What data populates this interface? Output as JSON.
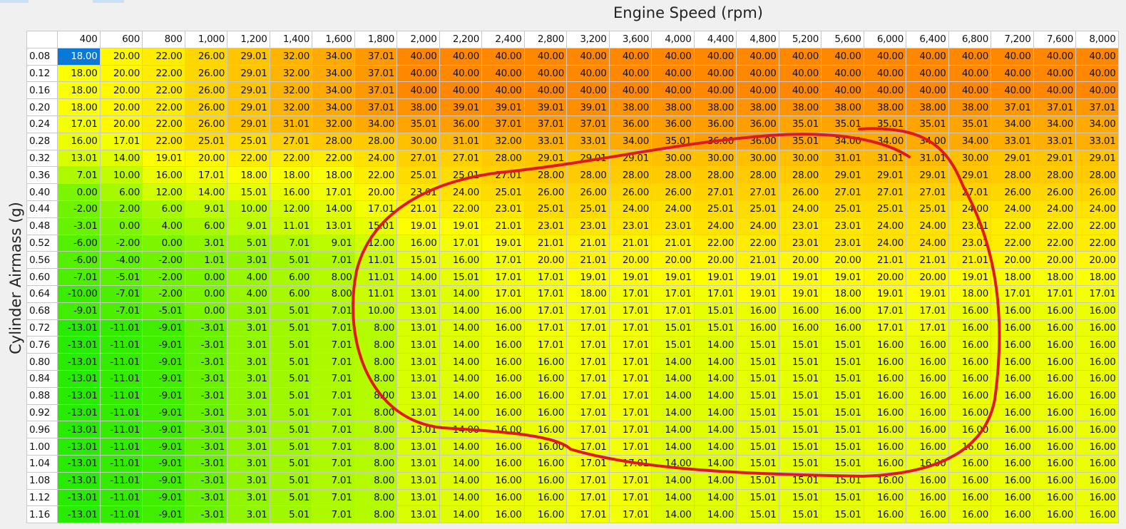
{
  "header": {
    "title": "Engine Speed (rpm)",
    "y_label": "Cylinder Airmass (g)"
  },
  "table": {
    "columns": [
      "400",
      "600",
      "800",
      "1,000",
      "1,200",
      "1,400",
      "1,600",
      "1,800",
      "2,000",
      "2,200",
      "2,400",
      "2,800",
      "3,200",
      "3,600",
      "4,000",
      "4,400",
      "4,800",
      "5,200",
      "5,600",
      "6,000",
      "6,400",
      "6,800",
      "7,200",
      "7,600",
      "8,000"
    ],
    "rows": [
      {
        "label": "0.08",
        "cells": [
          "18.00",
          "20.00",
          "22.00",
          "26.00",
          "29.01",
          "32.00",
          "34.00",
          "37.01",
          "40.00",
          "40.00",
          "40.00",
          "40.00",
          "40.00",
          "40.00",
          "40.00",
          "40.00",
          "40.00",
          "40.00",
          "40.00",
          "40.00",
          "40.00",
          "40.00",
          "40.00",
          "40.00",
          "40.00"
        ]
      },
      {
        "label": "0.12",
        "cells": [
          "18.00",
          "20.00",
          "22.00",
          "26.00",
          "29.01",
          "32.00",
          "34.00",
          "37.01",
          "40.00",
          "40.00",
          "40.00",
          "40.00",
          "40.00",
          "40.00",
          "40.00",
          "40.00",
          "40.00",
          "40.00",
          "40.00",
          "40.00",
          "40.00",
          "40.00",
          "40.00",
          "40.00",
          "40.00"
        ]
      },
      {
        "label": "0.16",
        "cells": [
          "18.00",
          "20.00",
          "22.00",
          "26.00",
          "29.01",
          "32.00",
          "34.00",
          "37.01",
          "40.00",
          "40.00",
          "40.00",
          "40.00",
          "40.00",
          "40.00",
          "40.00",
          "40.00",
          "40.00",
          "40.00",
          "40.00",
          "40.00",
          "40.00",
          "40.00",
          "40.00",
          "40.00",
          "40.00"
        ]
      },
      {
        "label": "0.20",
        "cells": [
          "18.00",
          "20.00",
          "22.00",
          "26.00",
          "29.01",
          "32.00",
          "34.00",
          "37.01",
          "38.00",
          "39.01",
          "39.01",
          "39.01",
          "39.01",
          "38.00",
          "38.00",
          "38.00",
          "38.00",
          "38.00",
          "38.00",
          "38.00",
          "38.00",
          "38.00",
          "37.01",
          "37.01",
          "37.01"
        ]
      },
      {
        "label": "0.24",
        "cells": [
          "17.01",
          "20.00",
          "22.00",
          "26.00",
          "29.01",
          "31.01",
          "32.00",
          "34.00",
          "35.01",
          "36.00",
          "37.01",
          "37.01",
          "37.01",
          "36.00",
          "36.00",
          "36.00",
          "36.00",
          "35.01",
          "35.01",
          "35.01",
          "35.01",
          "35.01",
          "34.00",
          "34.00",
          "34.00"
        ]
      },
      {
        "label": "0.28",
        "cells": [
          "16.00",
          "17.01",
          "22.00",
          "25.01",
          "25.01",
          "27.01",
          "28.00",
          "28.00",
          "30.00",
          "31.01",
          "32.00",
          "33.01",
          "33.01",
          "34.00",
          "35.01",
          "36.00",
          "36.00",
          "35.01",
          "34.00",
          "34.00",
          "34.00",
          "34.00",
          "33.01",
          "33.01",
          "33.01"
        ]
      },
      {
        "label": "0.32",
        "cells": [
          "13.01",
          "14.00",
          "19.01",
          "20.00",
          "22.00",
          "22.00",
          "22.00",
          "24.00",
          "27.01",
          "27.01",
          "28.00",
          "29.01",
          "29.01",
          "29.01",
          "30.00",
          "30.00",
          "30.00",
          "30.00",
          "31.01",
          "31.01",
          "31.01",
          "30.00",
          "29.01",
          "29.01",
          "29.01"
        ]
      },
      {
        "label": "0.36",
        "cells": [
          "7.01",
          "10.00",
          "16.00",
          "17.01",
          "18.00",
          "18.00",
          "18.00",
          "22.00",
          "25.01",
          "25.01",
          "27.01",
          "28.00",
          "28.00",
          "28.00",
          "28.00",
          "28.00",
          "28.00",
          "28.00",
          "29.01",
          "29.01",
          "29.01",
          "29.01",
          "28.00",
          "28.00",
          "28.00"
        ]
      },
      {
        "label": "0.40",
        "cells": [
          "0.00",
          "6.00",
          "12.00",
          "14.00",
          "15.01",
          "16.00",
          "17.01",
          "20.00",
          "23.01",
          "24.00",
          "25.01",
          "26.00",
          "26.00",
          "26.00",
          "26.00",
          "27.01",
          "27.01",
          "26.00",
          "27.01",
          "27.01",
          "27.01",
          "27.01",
          "26.00",
          "26.00",
          "26.00"
        ]
      },
      {
        "label": "0.44",
        "cells": [
          "-2.00",
          "2.00",
          "6.00",
          "9.01",
          "10.00",
          "12.00",
          "14.00",
          "17.01",
          "21.01",
          "22.00",
          "23.01",
          "25.01",
          "25.01",
          "24.00",
          "24.00",
          "25.01",
          "25.01",
          "24.00",
          "25.01",
          "25.01",
          "25.01",
          "24.00",
          "24.00",
          "24.00",
          "24.00"
        ]
      },
      {
        "label": "0.48",
        "cells": [
          "-3.01",
          "0.00",
          "4.00",
          "6.00",
          "9.01",
          "11.01",
          "13.01",
          "15.01",
          "19.01",
          "19.01",
          "21.01",
          "23.01",
          "23.01",
          "23.01",
          "23.01",
          "24.00",
          "24.00",
          "23.01",
          "23.01",
          "24.00",
          "24.00",
          "23.01",
          "22.00",
          "22.00",
          "22.00"
        ]
      },
      {
        "label": "0.52",
        "cells": [
          "-6.00",
          "-2.00",
          "0.00",
          "3.01",
          "5.01",
          "7.01",
          "9.01",
          "12.00",
          "16.00",
          "17.01",
          "19.01",
          "21.01",
          "21.01",
          "21.01",
          "21.01",
          "22.00",
          "22.00",
          "23.01",
          "23.01",
          "24.00",
          "24.00",
          "23.01",
          "22.00",
          "22.00",
          "22.00"
        ]
      },
      {
        "label": "0.56",
        "cells": [
          "-6.00",
          "-4.00",
          "-2.00",
          "1.01",
          "3.01",
          "5.01",
          "7.01",
          "11.01",
          "15.01",
          "16.00",
          "17.01",
          "20.00",
          "21.01",
          "20.00",
          "20.00",
          "20.00",
          "21.01",
          "20.00",
          "20.00",
          "21.01",
          "21.01",
          "21.01",
          "20.00",
          "20.00",
          "20.00"
        ]
      },
      {
        "label": "0.60",
        "cells": [
          "-7.01",
          "-5.01",
          "-2.00",
          "0.00",
          "4.00",
          "6.00",
          "8.00",
          "11.01",
          "14.00",
          "15.01",
          "17.01",
          "17.01",
          "19.01",
          "19.01",
          "19.01",
          "19.01",
          "19.01",
          "19.01",
          "19.01",
          "20.00",
          "20.00",
          "19.01",
          "18.00",
          "18.00",
          "18.00"
        ]
      },
      {
        "label": "0.64",
        "cells": [
          "-10.00",
          "-7.01",
          "-2.00",
          "0.00",
          "4.00",
          "6.00",
          "8.00",
          "11.01",
          "13.01",
          "14.00",
          "17.01",
          "17.01",
          "18.00",
          "17.01",
          "17.01",
          "17.01",
          "19.01",
          "19.01",
          "18.00",
          "19.01",
          "19.01",
          "18.00",
          "17.01",
          "17.01",
          "17.01"
        ]
      },
      {
        "label": "0.68",
        "cells": [
          "-9.01",
          "-7.01",
          "-5.01",
          "0.00",
          "3.01",
          "5.01",
          "7.01",
          "10.00",
          "13.01",
          "14.00",
          "16.00",
          "17.01",
          "17.01",
          "17.01",
          "17.01",
          "15.01",
          "16.00",
          "16.00",
          "16.00",
          "17.01",
          "17.01",
          "16.00",
          "16.00",
          "16.00",
          "16.00"
        ]
      },
      {
        "label": "0.72",
        "cells": [
          "-13.01",
          "-11.01",
          "-9.01",
          "-3.01",
          "3.01",
          "5.01",
          "7.01",
          "8.00",
          "13.01",
          "14.00",
          "16.00",
          "17.01",
          "17.01",
          "17.01",
          "15.01",
          "15.01",
          "16.00",
          "16.00",
          "16.00",
          "17.01",
          "17.01",
          "16.00",
          "16.00",
          "16.00",
          "16.00"
        ]
      },
      {
        "label": "0.76",
        "cells": [
          "-13.01",
          "-11.01",
          "-9.01",
          "-3.01",
          "3.01",
          "5.01",
          "7.01",
          "8.00",
          "13.01",
          "14.00",
          "16.00",
          "17.01",
          "17.01",
          "17.01",
          "15.01",
          "14.00",
          "15.01",
          "15.01",
          "15.01",
          "16.00",
          "16.00",
          "16.00",
          "16.00",
          "16.00",
          "16.00"
        ]
      },
      {
        "label": "0.80",
        "cells": [
          "-13.01",
          "-11.01",
          "-9.01",
          "-3.01",
          "3.01",
          "5.01",
          "7.01",
          "8.00",
          "13.01",
          "14.00",
          "16.00",
          "16.00",
          "17.01",
          "17.01",
          "14.00",
          "14.00",
          "15.01",
          "15.01",
          "15.01",
          "16.00",
          "16.00",
          "16.00",
          "16.00",
          "16.00",
          "16.00"
        ]
      },
      {
        "label": "0.84",
        "cells": [
          "-13.01",
          "-11.01",
          "-9.01",
          "-3.01",
          "3.01",
          "5.01",
          "7.01",
          "8.00",
          "13.01",
          "14.00",
          "16.00",
          "16.00",
          "17.01",
          "17.01",
          "14.00",
          "14.00",
          "15.01",
          "15.01",
          "15.01",
          "16.00",
          "16.00",
          "16.00",
          "16.00",
          "16.00",
          "16.00"
        ]
      },
      {
        "label": "0.88",
        "cells": [
          "-13.01",
          "-11.01",
          "-9.01",
          "-3.01",
          "3.01",
          "5.01",
          "7.01",
          "8.00",
          "13.01",
          "14.00",
          "16.00",
          "16.00",
          "17.01",
          "17.01",
          "14.00",
          "14.00",
          "15.01",
          "15.01",
          "15.01",
          "16.00",
          "16.00",
          "16.00",
          "16.00",
          "16.00",
          "16.00"
        ]
      },
      {
        "label": "0.92",
        "cells": [
          "-13.01",
          "-11.01",
          "-9.01",
          "-3.01",
          "3.01",
          "5.01",
          "7.01",
          "8.00",
          "13.01",
          "14.00",
          "16.00",
          "16.00",
          "17.01",
          "17.01",
          "14.00",
          "14.00",
          "15.01",
          "15.01",
          "15.01",
          "16.00",
          "16.00",
          "16.00",
          "16.00",
          "16.00",
          "16.00"
        ]
      },
      {
        "label": "0.96",
        "cells": [
          "-13.01",
          "-11.01",
          "-9.01",
          "-3.01",
          "3.01",
          "5.01",
          "7.01",
          "8.00",
          "13.01",
          "14.00",
          "16.00",
          "16.00",
          "17.01",
          "17.01",
          "14.00",
          "14.00",
          "15.01",
          "15.01",
          "15.01",
          "16.00",
          "16.00",
          "16.00",
          "16.00",
          "16.00",
          "16.00"
        ]
      },
      {
        "label": "1.00",
        "cells": [
          "-13.01",
          "-11.01",
          "-9.01",
          "-3.01",
          "3.01",
          "5.01",
          "7.01",
          "8.00",
          "13.01",
          "14.00",
          "16.00",
          "16.00",
          "17.01",
          "17.01",
          "14.00",
          "14.00",
          "15.01",
          "15.01",
          "15.01",
          "16.00",
          "16.00",
          "16.00",
          "16.00",
          "16.00",
          "16.00"
        ]
      },
      {
        "label": "1.04",
        "cells": [
          "-13.01",
          "-11.01",
          "-9.01",
          "-3.01",
          "3.01",
          "5.01",
          "7.01",
          "8.00",
          "13.01",
          "14.00",
          "16.00",
          "16.00",
          "17.01",
          "17.01",
          "14.00",
          "14.00",
          "15.01",
          "15.01",
          "15.01",
          "16.00",
          "16.00",
          "16.00",
          "16.00",
          "16.00",
          "16.00"
        ]
      },
      {
        "label": "1.08",
        "cells": [
          "-13.01",
          "-11.01",
          "-9.01",
          "-3.01",
          "3.01",
          "5.01",
          "7.01",
          "8.00",
          "13.01",
          "14.00",
          "16.00",
          "16.00",
          "17.01",
          "17.01",
          "14.00",
          "14.00",
          "15.01",
          "15.01",
          "15.01",
          "16.00",
          "16.00",
          "16.00",
          "16.00",
          "16.00",
          "16.00"
        ]
      },
      {
        "label": "1.12",
        "cells": [
          "-13.01",
          "-11.01",
          "-9.01",
          "-3.01",
          "3.01",
          "5.01",
          "7.01",
          "8.00",
          "13.01",
          "14.00",
          "16.00",
          "16.00",
          "17.01",
          "17.01",
          "14.00",
          "14.00",
          "15.01",
          "15.01",
          "15.01",
          "16.00",
          "16.00",
          "16.00",
          "16.00",
          "16.00",
          "16.00"
        ]
      },
      {
        "label": "1.16",
        "cells": [
          "-13.01",
          "-11.01",
          "-9.01",
          "-3.01",
          "3.01",
          "5.01",
          "7.01",
          "8.00",
          "13.01",
          "14.00",
          "16.00",
          "16.00",
          "17.01",
          "17.01",
          "14.00",
          "14.00",
          "15.01",
          "15.01",
          "15.01",
          "16.00",
          "16.00",
          "16.00",
          "16.00",
          "16.00",
          "16.00"
        ]
      }
    ]
  }
}
